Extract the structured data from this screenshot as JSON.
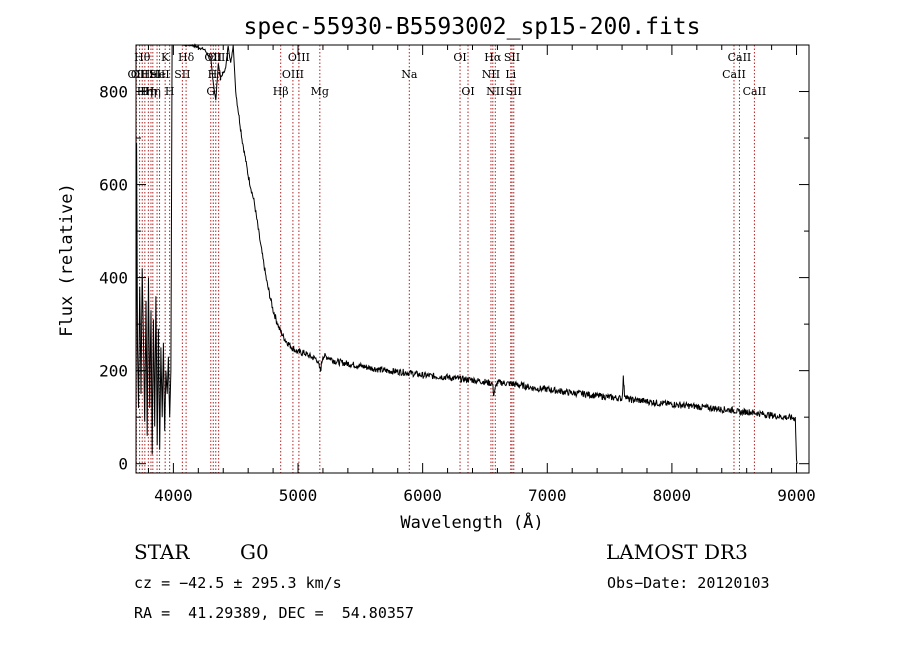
{
  "chart_data": {
    "type": "line",
    "title": "spec-55930-B5593002_sp15-200.fits",
    "xlabel": "Wavelength (Å)",
    "ylabel": "Flux (relative)",
    "xlim": [
      3700,
      9100
    ],
    "ylim": [
      -20,
      900
    ],
    "xticks": [
      4000,
      5000,
      6000,
      7000,
      8000,
      9000
    ],
    "yticks": [
      0,
      200,
      400,
      600,
      800
    ],
    "series": [
      {
        "name": "flux",
        "x": [
          3700,
          3705,
          3712,
          3720,
          3730,
          3740,
          3750,
          3760,
          3770,
          3780,
          3790,
          3800,
          3810,
          3820,
          3830,
          3840,
          3850,
          3860,
          3870,
          3880,
          3890,
          3900,
          3910,
          3920,
          3930,
          3940,
          3950,
          3960,
          3970,
          3980,
          3990,
          4000,
          4020,
          4050,
          4100,
          4150,
          4200,
          4250,
          4300,
          4320,
          4340,
          4360,
          4380,
          4400,
          4420,
          4440,
          4460,
          4480,
          4500,
          4520,
          4550,
          4600,
          4650,
          4700,
          4750,
          4800,
          4850,
          4900,
          4950,
          5000,
          5050,
          5100,
          5150,
          5180,
          5200,
          5250,
          5300,
          5400,
          5500,
          5600,
          5700,
          5800,
          5900,
          6000,
          6100,
          6200,
          6300,
          6400,
          6500,
          6560,
          6570,
          6600,
          6700,
          6800,
          6900,
          7000,
          7100,
          7200,
          7300,
          7400,
          7500,
          7600,
          7610,
          7620,
          7650,
          7700,
          7800,
          7900,
          8000,
          8100,
          8200,
          8300,
          8400,
          8500,
          8540,
          8600,
          8700,
          8800,
          8900,
          8990,
          9000,
          9005
        ],
        "values": [
          0,
          690,
          250,
          120,
          380,
          150,
          420,
          260,
          90,
          350,
          60,
          400,
          120,
          330,
          20,
          310,
          80,
          360,
          40,
          290,
          30,
          250,
          100,
          260,
          70,
          200,
          150,
          230,
          100,
          200,
          900,
          905,
          905,
          905,
          900,
          900,
          895,
          890,
          870,
          820,
          780,
          860,
          830,
          840,
          850,
          900,
          860,
          900,
          800,
          760,
          700,
          620,
          560,
          470,
          390,
          330,
          290,
          265,
          250,
          240,
          238,
          230,
          225,
          200,
          232,
          228,
          220,
          215,
          210,
          205,
          200,
          198,
          195,
          190,
          188,
          186,
          182,
          180,
          176,
          172,
          150,
          175,
          172,
          168,
          162,
          160,
          156,
          152,
          150,
          146,
          143,
          140,
          185,
          150,
          138,
          137,
          134,
          130,
          128,
          125,
          123,
          120,
          117,
          115,
          110,
          112,
          108,
          104,
          100,
          98,
          8,
          0
        ]
      }
    ],
    "lines": [
      {
        "wl": 3703,
        "label": "OII",
        "row": 2
      },
      {
        "wl": 3729,
        "label": "OII",
        "row": 2
      },
      {
        "wl": 3750,
        "label": "Hθ",
        "row": 1
      },
      {
        "wl": 3771,
        "label": "Hη",
        "row": 3
      },
      {
        "wl": 3799,
        "label": "Hη",
        "row": 3
      },
      {
        "wl": 3820,
        "label": "HeI",
        "row": 2
      },
      {
        "wl": 3835,
        "label": "Hη",
        "row": 3
      },
      {
        "wl": 3869,
        "label": "SII",
        "row": 2
      },
      {
        "wl": 3889,
        "label": "HeI",
        "row": 2
      },
      {
        "wl": 3934,
        "label": "K",
        "row": 1
      },
      {
        "wl": 3970,
        "label": "H",
        "row": 3
      },
      {
        "wl": 4072,
        "label": "SII",
        "row": 2
      },
      {
        "wl": 4102,
        "label": "Hδ",
        "row": 1
      },
      {
        "wl": 4300,
        "label": "G",
        "row": 3
      },
      {
        "wl": 4320,
        "label": "OII",
        "row": 1
      },
      {
        "wl": 4340,
        "label": "Hγ",
        "row": 2
      },
      {
        "wl": 4363,
        "label": "OIII",
        "row": 1
      },
      {
        "wl": 4861,
        "label": "Hβ",
        "row": 3
      },
      {
        "wl": 4959,
        "label": "OIII",
        "row": 2
      },
      {
        "wl": 5007,
        "label": "OIII",
        "row": 1
      },
      {
        "wl": 5175,
        "label": "Mg",
        "row": 3
      },
      {
        "wl": 5893,
        "label": "Na",
        "row": 2
      },
      {
        "wl": 6300,
        "label": "OI",
        "row": 1
      },
      {
        "wl": 6364,
        "label": "OI",
        "row": 3
      },
      {
        "wl": 6548,
        "label": "NII",
        "row": 2
      },
      {
        "wl": 6563,
        "label": "Hα",
        "row": 1
      },
      {
        "wl": 6583,
        "label": "NII",
        "row": 3
      },
      {
        "wl": 6707,
        "label": "Li",
        "row": 2
      },
      {
        "wl": 6717,
        "label": "SII",
        "row": 1
      },
      {
        "wl": 6731,
        "label": "SII",
        "row": 3
      },
      {
        "wl": 8498,
        "label": "CaII",
        "row": 2
      },
      {
        "wl": 8542,
        "label": "CaII",
        "row": 1
      },
      {
        "wl": 8662,
        "label": "CaII",
        "row": 3
      }
    ]
  },
  "info": {
    "object_class": "STAR",
    "subclass": "G0",
    "survey": "LAMOST DR3",
    "cz": "cz = −42.5 ± 295.3 km/s",
    "obs_date": "Obs−Date: 20120103",
    "coords": "RA =  41.29389, DEC =  54.80357"
  }
}
